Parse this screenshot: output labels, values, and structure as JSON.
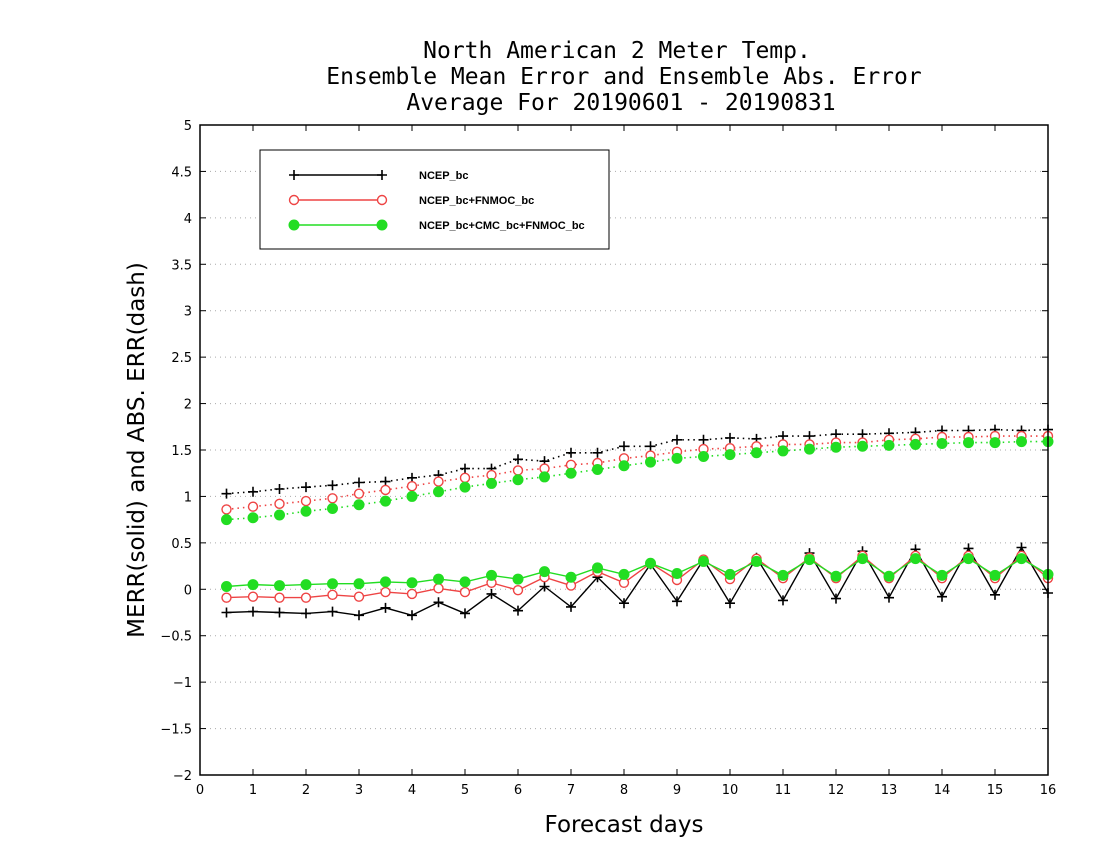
{
  "chart_data": {
    "type": "line",
    "title": [
      "North American 2 Meter Temp.",
      "Ensemble Mean Error and Ensemble Abs. Error",
      "Average For 20190601 - 20190831"
    ],
    "xlabel": "Forecast days",
    "ylabel": "MERR(solid) and ABS. ERR(dash)",
    "xlim": [
      0,
      16
    ],
    "ylim": [
      -2,
      5
    ],
    "xticks": [
      0,
      1,
      2,
      3,
      4,
      5,
      6,
      7,
      8,
      9,
      10,
      11,
      12,
      13,
      14,
      15,
      16
    ],
    "yticks": [
      -2,
      -1.5,
      -1,
      -0.5,
      0,
      0.5,
      1,
      1.5,
      2,
      2.5,
      3,
      3.5,
      4,
      4.5,
      5
    ],
    "x": [
      0.5,
      1,
      1.5,
      2,
      2.5,
      3,
      3.5,
      4,
      4.5,
      5,
      5.5,
      6,
      6.5,
      7,
      7.5,
      8,
      8.5,
      9,
      9.5,
      10,
      10.5,
      11,
      11.5,
      12,
      12.5,
      13,
      13.5,
      14,
      14.5,
      15,
      15.5,
      16
    ],
    "grid": "horizontal dotted",
    "legend_position": "top-left",
    "series": [
      {
        "name": "NCEP_bc",
        "color": "#000000",
        "marker": "plus",
        "merr": [
          -0.25,
          -0.24,
          -0.25,
          -0.26,
          -0.24,
          -0.28,
          -0.2,
          -0.28,
          -0.14,
          -0.26,
          -0.05,
          -0.23,
          0.03,
          -0.19,
          0.13,
          -0.15,
          0.27,
          -0.13,
          0.32,
          -0.15,
          0.34,
          -0.12,
          0.39,
          -0.1,
          0.41,
          -0.09,
          0.43,
          -0.08,
          0.44,
          -0.06,
          0.45,
          -0.04
        ],
        "abserr": [
          1.03,
          1.05,
          1.08,
          1.1,
          1.12,
          1.15,
          1.16,
          1.2,
          1.23,
          1.3,
          1.3,
          1.4,
          1.38,
          1.47,
          1.47,
          1.54,
          1.54,
          1.61,
          1.61,
          1.63,
          1.62,
          1.65,
          1.65,
          1.67,
          1.67,
          1.68,
          1.69,
          1.71,
          1.71,
          1.72,
          1.71,
          1.72
        ]
      },
      {
        "name": "NCEP_bc+FNMOC_bc",
        "color": "#ee4444",
        "marker": "open-circle",
        "merr": [
          -0.09,
          -0.08,
          -0.09,
          -0.09,
          -0.06,
          -0.08,
          -0.03,
          -0.05,
          0.01,
          -0.03,
          0.07,
          -0.01,
          0.13,
          0.04,
          0.19,
          0.07,
          0.28,
          0.1,
          0.32,
          0.11,
          0.33,
          0.12,
          0.34,
          0.12,
          0.36,
          0.12,
          0.36,
          0.12,
          0.36,
          0.12,
          0.36,
          0.12
        ],
        "abserr": [
          0.86,
          0.89,
          0.92,
          0.95,
          0.98,
          1.03,
          1.07,
          1.11,
          1.16,
          1.2,
          1.23,
          1.28,
          1.3,
          1.34,
          1.36,
          1.41,
          1.44,
          1.48,
          1.51,
          1.52,
          1.54,
          1.56,
          1.56,
          1.58,
          1.58,
          1.61,
          1.62,
          1.64,
          1.64,
          1.65,
          1.65,
          1.65
        ]
      },
      {
        "name": "NCEP_bc+CMC_bc+FNMOC_bc",
        "color": "#22dd22",
        "marker": "filled-circle",
        "merr": [
          0.03,
          0.05,
          0.04,
          0.05,
          0.06,
          0.06,
          0.08,
          0.07,
          0.11,
          0.08,
          0.15,
          0.11,
          0.19,
          0.13,
          0.23,
          0.16,
          0.28,
          0.17,
          0.3,
          0.16,
          0.3,
          0.15,
          0.32,
          0.14,
          0.33,
          0.14,
          0.33,
          0.15,
          0.33,
          0.15,
          0.33,
          0.16
        ],
        "abserr": [
          0.75,
          0.77,
          0.8,
          0.84,
          0.87,
          0.91,
          0.95,
          1.0,
          1.05,
          1.1,
          1.14,
          1.18,
          1.21,
          1.25,
          1.29,
          1.33,
          1.37,
          1.41,
          1.43,
          1.45,
          1.47,
          1.49,
          1.51,
          1.53,
          1.54,
          1.55,
          1.56,
          1.57,
          1.58,
          1.58,
          1.59,
          1.59
        ]
      }
    ]
  }
}
